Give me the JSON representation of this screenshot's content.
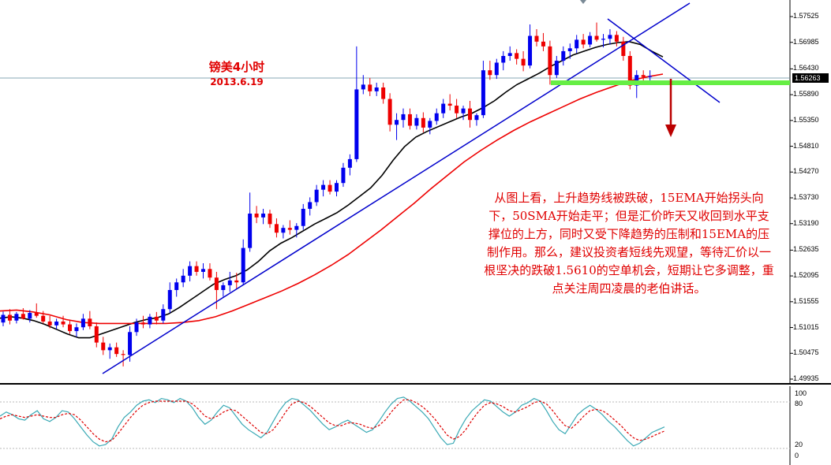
{
  "chart_data": {
    "type": "candlestick",
    "title": "镑美4小时",
    "subtitle": "2013.6.19",
    "annotation": "从图上看，上升趋势线被跌破，15EMA开始拐头向下，50SMA开始走平；但是汇价昨天又收回到水平支撑位的上方，同时又受下降趋势的压制和15EMA的压制作用。那么，建议投资者短线先观望，等待汇价以一根坚决的跌破1.5610的空单机会，短期让它多调整，重点关注周四凌晨的老伯讲话。",
    "y_axis_ticks": [
      "1.57525",
      "1.56985",
      "1.56430",
      "1.55890",
      "1.55350",
      "1.54810",
      "1.54270",
      "1.53730",
      "1.53190",
      "1.52635",
      "1.52095",
      "1.51555",
      "1.51015",
      "1.50475",
      "1.49935"
    ],
    "ylim": [
      1.499,
      1.5765
    ],
    "current_price": "1.56263",
    "support_level": 1.562,
    "stochastic_ticks": [
      "100",
      "80",
      "20",
      "0"
    ],
    "stochastic_ylim": [
      0,
      100
    ],
    "colors": {
      "up": "#0000ee",
      "down": "#ee0000",
      "ema15": "#000000",
      "sma50": "#ee0000",
      "trendline": "#0000cc",
      "support": "#66ee44",
      "signal_arrow": "#bb0000",
      "stoch_main": "#3aa9b5",
      "stoch_signal": "#dd0000"
    },
    "candles": [
      [
        1.5112,
        1.5135,
        1.5104,
        1.5128
      ],
      [
        1.5128,
        1.514,
        1.5108,
        1.5116
      ],
      [
        1.5116,
        1.5134,
        1.511,
        1.513
      ],
      [
        1.513,
        1.5142,
        1.5118,
        1.512
      ],
      [
        1.512,
        1.5138,
        1.5112,
        1.5132
      ],
      [
        1.5132,
        1.5152,
        1.5122,
        1.5126
      ],
      [
        1.5126,
        1.5136,
        1.511,
        1.5114
      ],
      [
        1.5114,
        1.5126,
        1.51,
        1.5106
      ],
      [
        1.5106,
        1.512,
        1.5098,
        1.5114
      ],
      [
        1.5114,
        1.5126,
        1.5102,
        1.5108
      ],
      [
        1.5108,
        1.5118,
        1.5088,
        1.5094
      ],
      [
        1.5094,
        1.511,
        1.5082,
        1.5102
      ],
      [
        1.5102,
        1.513,
        1.5096,
        1.512
      ],
      [
        1.512,
        1.5136,
        1.5098,
        1.5104
      ],
      [
        1.5104,
        1.5112,
        1.506,
        1.507
      ],
      [
        1.507,
        1.5082,
        1.5044,
        1.5054
      ],
      [
        1.5054,
        1.5068,
        1.5036,
        1.506
      ],
      [
        1.506,
        1.507,
        1.504,
        1.5046
      ],
      [
        1.5046,
        1.5054,
        1.502,
        1.5044
      ],
      [
        1.5044,
        1.5104,
        1.503,
        1.5092
      ],
      [
        1.5092,
        1.512,
        1.5084,
        1.5112
      ],
      [
        1.5112,
        1.5126,
        1.51,
        1.5108
      ],
      [
        1.5108,
        1.513,
        1.51,
        1.5124
      ],
      [
        1.5124,
        1.5134,
        1.5108,
        1.5116
      ],
      [
        1.5116,
        1.515,
        1.511,
        1.514
      ],
      [
        1.514,
        1.5196,
        1.5132,
        1.518
      ],
      [
        1.518,
        1.5204,
        1.5166,
        1.5196
      ],
      [
        1.5196,
        1.5224,
        1.5186,
        1.521
      ],
      [
        1.521,
        1.524,
        1.5198,
        1.523
      ],
      [
        1.523,
        1.524,
        1.521,
        1.5218
      ],
      [
        1.5218,
        1.5236,
        1.5204,
        1.5224
      ],
      [
        1.5224,
        1.5236,
        1.52,
        1.5206
      ],
      [
        1.5206,
        1.5218,
        1.514,
        1.518
      ],
      [
        1.518,
        1.5196,
        1.5166,
        1.519
      ],
      [
        1.519,
        1.5218,
        1.5176,
        1.52
      ],
      [
        1.52,
        1.5216,
        1.5182,
        1.5196
      ],
      [
        1.5196,
        1.5286,
        1.519,
        1.5268
      ],
      [
        1.5268,
        1.5384,
        1.526,
        1.534
      ],
      [
        1.534,
        1.5356,
        1.532,
        1.5332
      ],
      [
        1.5332,
        1.535,
        1.5318,
        1.534
      ],
      [
        1.534,
        1.5348,
        1.531,
        1.5318
      ],
      [
        1.5318,
        1.533,
        1.529,
        1.53
      ],
      [
        1.53,
        1.5316,
        1.5288,
        1.531
      ],
      [
        1.531,
        1.5326,
        1.5296,
        1.5306
      ],
      [
        1.5306,
        1.532,
        1.529,
        1.5314
      ],
      [
        1.5314,
        1.536,
        1.5306,
        1.535
      ],
      [
        1.535,
        1.5374,
        1.5336,
        1.5364
      ],
      [
        1.5364,
        1.54,
        1.5356,
        1.539
      ],
      [
        1.539,
        1.541,
        1.5376,
        1.54
      ],
      [
        1.54,
        1.541,
        1.538,
        1.5386
      ],
      [
        1.5386,
        1.541,
        1.5376,
        1.5404
      ],
      [
        1.5404,
        1.5446,
        1.5396,
        1.5436
      ],
      [
        1.5436,
        1.5464,
        1.542,
        1.5454
      ],
      [
        1.5454,
        1.569,
        1.5448,
        1.56
      ],
      [
        1.56,
        1.563,
        1.559,
        1.561
      ],
      [
        1.561,
        1.5624,
        1.5586,
        1.5596
      ],
      [
        1.5596,
        1.5614,
        1.5586,
        1.5604
      ],
      [
        1.5604,
        1.5614,
        1.557,
        1.558
      ],
      [
        1.558,
        1.5592,
        1.5512,
        1.5526
      ],
      [
        1.5526,
        1.555,
        1.5494,
        1.5536
      ],
      [
        1.5536,
        1.556,
        1.552,
        1.5548
      ],
      [
        1.5548,
        1.556,
        1.5516,
        1.5524
      ],
      [
        1.5524,
        1.5548,
        1.5516,
        1.554
      ],
      [
        1.554,
        1.5552,
        1.551,
        1.552
      ],
      [
        1.552,
        1.554,
        1.5506,
        1.5534
      ],
      [
        1.5534,
        1.556,
        1.5526,
        1.555
      ],
      [
        1.555,
        1.558,
        1.554,
        1.557
      ],
      [
        1.557,
        1.559,
        1.5556,
        1.5566
      ],
      [
        1.5566,
        1.558,
        1.554,
        1.555
      ],
      [
        1.555,
        1.5566,
        1.5536,
        1.556
      ],
      [
        1.556,
        1.5576,
        1.552,
        1.5536
      ],
      [
        1.5536,
        1.555,
        1.5524,
        1.5546
      ],
      [
        1.5546,
        1.566,
        1.554,
        1.564
      ],
      [
        1.564,
        1.566,
        1.562,
        1.563
      ],
      [
        1.563,
        1.5664,
        1.5622,
        1.5656
      ],
      [
        1.5656,
        1.568,
        1.564,
        1.567
      ],
      [
        1.567,
        1.569,
        1.566,
        1.5676
      ],
      [
        1.5676,
        1.5684,
        1.5652,
        1.5664
      ],
      [
        1.5664,
        1.568,
        1.5638,
        1.565
      ],
      [
        1.565,
        1.5736,
        1.5644,
        1.5712
      ],
      [
        1.5712,
        1.5726,
        1.569,
        1.57
      ],
      [
        1.57,
        1.5718,
        1.568,
        1.569
      ],
      [
        1.569,
        1.5702,
        1.561,
        1.563
      ],
      [
        1.563,
        1.567,
        1.5624,
        1.566
      ],
      [
        1.566,
        1.569,
        1.565,
        1.568
      ],
      [
        1.568,
        1.5696,
        1.5664,
        1.5686
      ],
      [
        1.5686,
        1.5714,
        1.5676,
        1.5704
      ],
      [
        1.5704,
        1.5716,
        1.5686,
        1.5694
      ],
      [
        1.5694,
        1.572,
        1.5688,
        1.5712
      ],
      [
        1.5712,
        1.574,
        1.57,
        1.5704
      ],
      [
        1.5704,
        1.5716,
        1.5688,
        1.5706
      ],
      [
        1.5706,
        1.5726,
        1.5694,
        1.5714
      ],
      [
        1.5714,
        1.5722,
        1.569,
        1.57
      ],
      [
        1.57,
        1.571,
        1.566,
        1.567
      ],
      [
        1.567,
        1.568,
        1.56,
        1.5608
      ],
      [
        1.5608,
        1.564,
        1.5582,
        1.563
      ],
      [
        1.563,
        1.564,
        1.5618,
        1.5626
      ],
      [
        1.5626,
        1.564,
        1.5614,
        1.5628
      ]
    ],
    "ema15": [
      1.5121,
      1.5124,
      1.5121,
      1.5116,
      1.5108,
      1.5098,
      1.5088,
      1.508,
      1.508,
      1.5088,
      1.5096,
      1.5104,
      1.5112,
      1.5118,
      1.5122,
      1.513,
      1.5144,
      1.516,
      1.5176,
      1.5192,
      1.5202,
      1.521,
      1.5222,
      1.524,
      1.5262,
      1.5278,
      1.529,
      1.5304,
      1.5318,
      1.533,
      1.5342,
      1.5358,
      1.5376,
      1.5394,
      1.542,
      1.5452,
      1.548,
      1.55,
      1.5512,
      1.5522,
      1.5532,
      1.5542,
      1.555,
      1.5562,
      1.5576,
      1.5594,
      1.561,
      1.5622,
      1.5634,
      1.5648,
      1.566,
      1.5672,
      1.568,
      1.5688,
      1.5694,
      1.5698,
      1.57,
      1.5694,
      1.568,
      1.5668
    ],
    "sma50": [
      1.5136,
      1.5138,
      1.5134,
      1.5128,
      1.5118,
      1.5112,
      1.511,
      1.511,
      1.511,
      1.511,
      1.511,
      1.5112,
      1.5116,
      1.5124,
      1.5136,
      1.515,
      1.5164,
      1.5178,
      1.5194,
      1.5212,
      1.5232,
      1.5254,
      1.528,
      1.5306,
      1.5334,
      1.5362,
      1.5392,
      1.542,
      1.5448,
      1.5472,
      1.5494,
      1.5514,
      1.5532,
      1.5548,
      1.5564,
      1.558,
      1.5594,
      1.5606,
      1.5618,
      1.5626,
      1.5632
    ],
    "stochastic_main": [
      64,
      70,
      66,
      60,
      58,
      66,
      72,
      60,
      56,
      62,
      72,
      70,
      60,
      48,
      36,
      26,
      20,
      22,
      30,
      48,
      62,
      70,
      80,
      86,
      88,
      84,
      90,
      88,
      84,
      90,
      86,
      76,
      62,
      52,
      58,
      70,
      80,
      76,
      64,
      52,
      44,
      38,
      32,
      40,
      56,
      72,
      84,
      90,
      88,
      80,
      72,
      62,
      52,
      44,
      48,
      54,
      58,
      52,
      46,
      40,
      44,
      56,
      70,
      82,
      90,
      92,
      86,
      78,
      70,
      60,
      46,
      32,
      22,
      24,
      44,
      60,
      72,
      80,
      88,
      86,
      78,
      70,
      64,
      70,
      80,
      84,
      90,
      86,
      72,
      56,
      44,
      38,
      52,
      66,
      74,
      80,
      74,
      66,
      56,
      48,
      38,
      28,
      20,
      24,
      32,
      40,
      44,
      48
    ],
    "stochastic_signal": [
      60,
      64,
      66,
      64,
      62,
      64,
      66,
      64,
      62,
      62,
      66,
      68,
      66,
      58,
      48,
      38,
      30,
      26,
      28,
      38,
      50,
      62,
      72,
      80,
      84,
      86,
      86,
      86,
      86,
      86,
      86,
      82,
      74,
      64,
      60,
      64,
      70,
      74,
      72,
      64,
      56,
      48,
      40,
      38,
      44,
      56,
      70,
      82,
      86,
      84,
      78,
      70,
      62,
      54,
      50,
      50,
      54,
      54,
      52,
      48,
      46,
      50,
      58,
      70,
      80,
      88,
      88,
      84,
      78,
      70,
      60,
      48,
      36,
      30,
      34,
      44,
      58,
      70,
      80,
      84,
      82,
      78,
      72,
      70,
      74,
      78,
      84,
      86,
      82,
      72,
      60,
      50,
      46,
      54,
      64,
      72,
      74,
      72,
      66,
      58,
      50,
      40,
      32,
      28,
      30,
      34,
      38,
      42
    ]
  }
}
